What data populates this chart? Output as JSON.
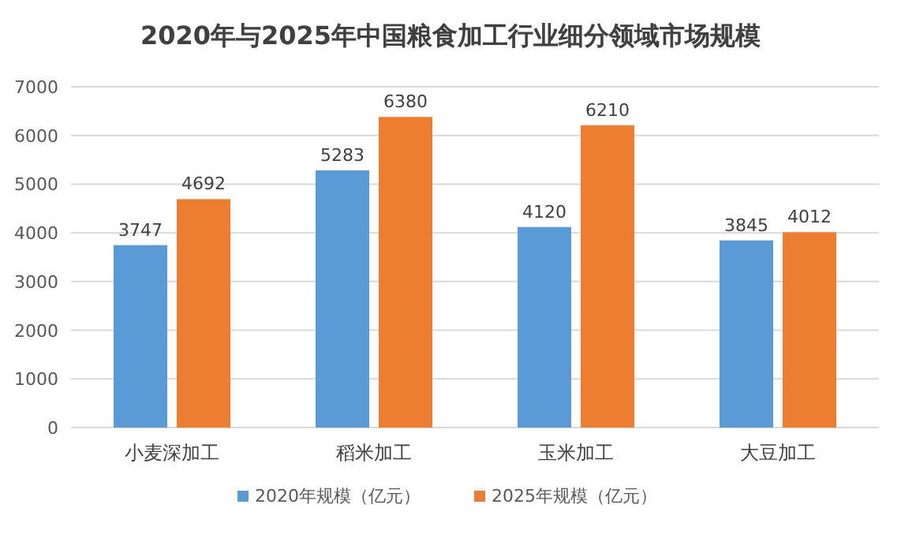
{
  "chart_data": {
    "type": "bar",
    "title": "2020年与2025年中国粮食加工行业细分领域市场规模",
    "categories": [
      "小麦深加工",
      "稻米加工",
      "玉米加工",
      "大豆加工"
    ],
    "series": [
      {
        "name": "2020年规模（亿元）",
        "color": "#5b9bd5",
        "values": [
          3747,
          5283,
          4120,
          3845
        ]
      },
      {
        "name": "2025年规模（亿元）",
        "color": "#ed7d31",
        "values": [
          4692,
          6380,
          6210,
          4012
        ]
      }
    ],
    "ylim": [
      0,
      7000
    ],
    "yticks": [
      0,
      1000,
      2000,
      3000,
      4000,
      5000,
      6000,
      7000
    ],
    "grid": "y",
    "legend": "bottom",
    "data_labels": true
  }
}
